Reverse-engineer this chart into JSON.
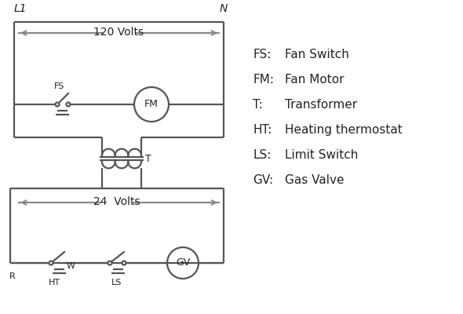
{
  "bg_color": "#ffffff",
  "line_color": "#555555",
  "arrow_color": "#888888",
  "text_color": "#222222",
  "volts_120": "120 Volts",
  "volts_24": "24  Volts",
  "L1": "L1",
  "N": "N",
  "legend": [
    [
      "FS:",
      "Fan Switch"
    ],
    [
      "FM:",
      "Fan Motor"
    ],
    [
      "T:",
      "Transformer"
    ],
    [
      "HT:",
      "Heating thermostat"
    ],
    [
      "LS:",
      "Limit Switch"
    ],
    [
      "GV:",
      "Gas Valve"
    ]
  ],
  "lw": 1.6,
  "arrow_lw": 1.4
}
